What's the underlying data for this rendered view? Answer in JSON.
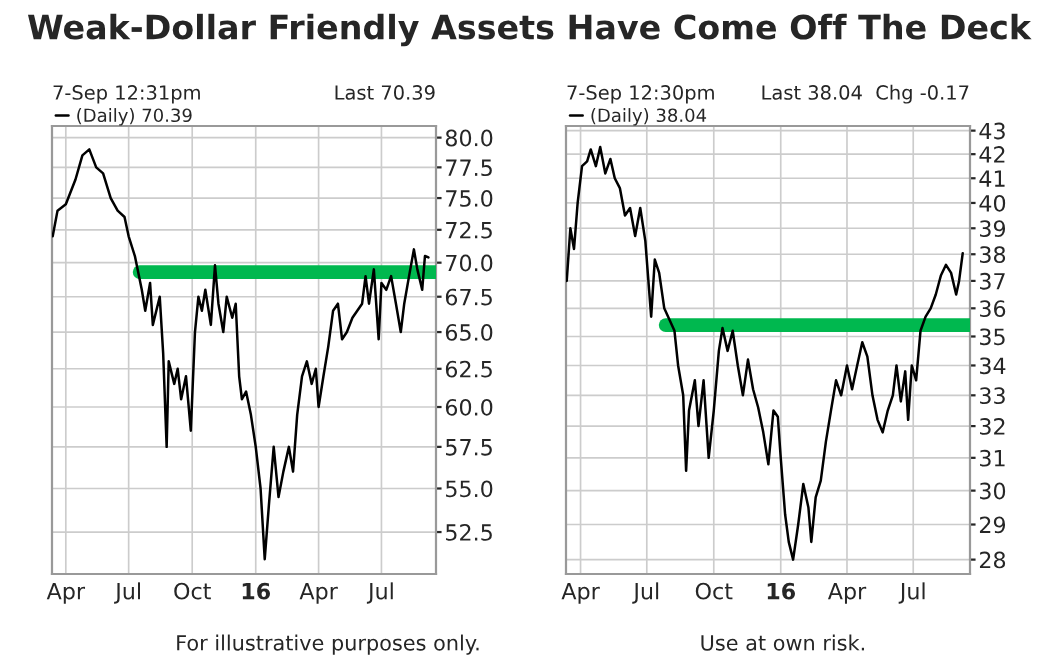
{
  "chart_data": [
    {
      "type": "line",
      "title": "Weak-Dollar Friendly Assets Have Come Off The Deck",
      "subtitle": "7-Sep 12:31pm",
      "annotations": [
        "Last 70.39",
        "For illustrative purposes only."
      ],
      "log": "y",
      "grid": true,
      "legend": "top left",
      "xlim": [
        "2015-03-12",
        "2016-09-18"
      ],
      "xticks": [
        {
          "value": "2015-04-01",
          "label": "Apr"
        },
        {
          "value": "2015-07-01",
          "label": "Jul"
        },
        {
          "value": "2015-10-01",
          "label": "Oct"
        },
        {
          "value": "2016-01-01",
          "label": "16"
        },
        {
          "value": "2016-04-01",
          "label": "Apr"
        },
        {
          "value": "2016-07-01",
          "label": "Jul"
        }
      ],
      "ylim": [
        50.2,
        81
      ],
      "yticks": [
        {
          "value": 52.5,
          "label": "52.5"
        },
        {
          "value": 55,
          "label": "55.0"
        },
        {
          "value": 57.5,
          "label": "57.5"
        },
        {
          "value": 60,
          "label": "60.0"
        },
        {
          "value": 62.5,
          "label": "62.5"
        },
        {
          "value": 65,
          "label": "65.0"
        },
        {
          "value": 67.5,
          "label": "67.5"
        },
        {
          "value": 70,
          "label": "70.0"
        },
        {
          "value": 72.5,
          "label": "72.5"
        },
        {
          "value": 75,
          "label": "75.0"
        },
        {
          "value": 77.5,
          "label": "77.5"
        },
        {
          "value": 80,
          "label": "80.0"
        }
      ],
      "series": [
        {
          "name": "(Daily) 70.39",
          "color": "#000000",
          "x": [
            "2015-03-13",
            "2015-03-20",
            "2015-04-01",
            "2015-04-15",
            "2015-04-25",
            "2015-05-05",
            "2015-05-15",
            "2015-05-25",
            "2015-06-05",
            "2015-06-15",
            "2015-06-25",
            "2015-07-01",
            "2015-07-10",
            "2015-07-20",
            "2015-07-25",
            "2015-08-01",
            "2015-08-05",
            "2015-08-15",
            "2015-08-20",
            "2015-08-25",
            "2015-08-28",
            "2015-09-05",
            "2015-09-10",
            "2015-09-15",
            "2015-09-22",
            "2015-09-29",
            "2015-10-05",
            "2015-10-10",
            "2015-10-15",
            "2015-10-20",
            "2015-10-28",
            "2015-11-03",
            "2015-11-08",
            "2015-11-15",
            "2015-11-20",
            "2015-11-28",
            "2015-12-03",
            "2015-12-08",
            "2015-12-12",
            "2015-12-18",
            "2015-12-25",
            "2016-01-01",
            "2016-01-08",
            "2016-01-14",
            "2016-01-20",
            "2016-01-27",
            "2016-02-03",
            "2016-02-10",
            "2016-02-18",
            "2016-02-24",
            "2016-03-01",
            "2016-03-08",
            "2016-03-15",
            "2016-03-22",
            "2016-03-28",
            "2016-04-01",
            "2016-04-08",
            "2016-04-15",
            "2016-04-22",
            "2016-04-29",
            "2016-05-05",
            "2016-05-12",
            "2016-05-20",
            "2016-05-27",
            "2016-06-03",
            "2016-06-08",
            "2016-06-13",
            "2016-06-20",
            "2016-06-27",
            "2016-07-01",
            "2016-07-08",
            "2016-07-15",
            "2016-07-22",
            "2016-07-29",
            "2016-08-03",
            "2016-08-10",
            "2016-08-17",
            "2016-08-22",
            "2016-08-29",
            "2016-09-02",
            "2016-09-07"
          ],
          "values": [
            72.0,
            74,
            74.5,
            76.5,
            78.5,
            79,
            77.5,
            77,
            75,
            74,
            73.5,
            72,
            70.5,
            68,
            66.5,
            68.5,
            65.5,
            67.5,
            63.5,
            57.5,
            63,
            61.5,
            62.5,
            60.5,
            62,
            58.5,
            65,
            67.5,
            66.5,
            68,
            65.5,
            69.8,
            67,
            65,
            67.5,
            66,
            67,
            62,
            60.5,
            61,
            59.5,
            57.5,
            55,
            51.0,
            54,
            57.5,
            54.5,
            56,
            57.5,
            56,
            59.5,
            62,
            63,
            61.5,
            62.5,
            60,
            62,
            64,
            66.5,
            67,
            64.5,
            65,
            66,
            66.5,
            67,
            69,
            67,
            69.5,
            64.5,
            68.5,
            68,
            69,
            67,
            65,
            67,
            69,
            71,
            69.5,
            68,
            70.5,
            70.39
          ]
        },
        {
          "color": "#00b84f",
          "x": [
            "2015-07-17",
            "2016-09-18"
          ],
          "values": [
            69.3,
            69.3
          ]
        }
      ]
    },
    {
      "type": "line",
      "subtitle": "7-Sep 12:30pm",
      "annotations": [
        "Last 38.04  Chg -0.17",
        "Use at own risk."
      ],
      "log": "y",
      "grid": true,
      "legend": "top left",
      "xlim": [
        "2015-03-12",
        "2016-09-17"
      ],
      "xticks": [
        {
          "value": "2015-04-01",
          "label": "Apr"
        },
        {
          "value": "2015-07-01",
          "label": "Jul"
        },
        {
          "value": "2015-10-01",
          "label": "Oct"
        },
        {
          "value": "2016-01-01",
          "label": "16"
        },
        {
          "value": "2016-04-01",
          "label": "Apr"
        },
        {
          "value": "2016-07-01",
          "label": "Jul"
        }
      ],
      "ylim": [
        27.6,
        43.2
      ],
      "yticks": [
        28,
        29,
        30,
        31,
        32,
        33,
        34,
        35,
        36,
        37,
        38,
        39,
        40,
        41,
        42,
        43
      ],
      "series": [
        {
          "name": "(Daily) 38.04",
          "color": "#000000",
          "x": [
            "2015-03-13",
            "2015-03-18",
            "2015-03-23",
            "2015-03-28",
            "2015-04-03",
            "2015-04-10",
            "2015-04-15",
            "2015-04-22",
            "2015-04-28",
            "2015-05-05",
            "2015-05-12",
            "2015-05-18",
            "2015-05-25",
            "2015-06-01",
            "2015-06-08",
            "2015-06-15",
            "2015-06-22",
            "2015-06-29",
            "2015-07-07",
            "2015-07-12",
            "2015-07-18",
            "2015-07-25",
            "2015-08-01",
            "2015-08-08",
            "2015-08-13",
            "2015-08-20",
            "2015-08-24",
            "2015-08-28",
            "2015-09-05",
            "2015-09-10",
            "2015-09-17",
            "2015-09-24",
            "2015-10-01",
            "2015-10-08",
            "2015-10-13",
            "2015-10-20",
            "2015-10-27",
            "2015-11-03",
            "2015-11-10",
            "2015-11-17",
            "2015-11-24",
            "2015-12-01",
            "2015-12-08",
            "2015-12-15",
            "2015-12-22",
            "2015-12-28",
            "2016-01-01",
            "2016-01-07",
            "2016-01-12",
            "2016-01-18",
            "2016-01-25",
            "2016-02-01",
            "2016-02-08",
            "2016-02-12",
            "2016-02-18",
            "2016-02-25",
            "2016-03-03",
            "2016-03-10",
            "2016-03-17",
            "2016-03-24",
            "2016-04-01",
            "2016-04-08",
            "2016-04-15",
            "2016-04-22",
            "2016-04-29",
            "2016-05-06",
            "2016-05-13",
            "2016-05-20",
            "2016-05-27",
            "2016-06-03",
            "2016-06-08",
            "2016-06-14",
            "2016-06-20",
            "2016-06-24",
            "2016-06-29",
            "2016-07-05",
            "2016-07-11",
            "2016-07-18",
            "2016-07-25",
            "2016-08-01",
            "2016-08-08",
            "2016-08-15",
            "2016-08-22",
            "2016-08-29",
            "2016-09-02",
            "2016-09-07"
          ],
          "values": [
            37.0,
            39,
            38.2,
            40,
            41.5,
            41.7,
            42.2,
            41.5,
            42.3,
            41.2,
            41.8,
            41.0,
            40.6,
            39.5,
            39.8,
            38.7,
            39.8,
            38.5,
            35.7,
            37.8,
            37.3,
            36.0,
            35.6,
            35.2,
            34.0,
            33.0,
            30.6,
            32.5,
            33.5,
            32.0,
            33.5,
            31.0,
            32.5,
            34.5,
            35.3,
            34.5,
            35.2,
            34.0,
            33.0,
            34.2,
            33.2,
            32.6,
            31.8,
            30.8,
            32.5,
            32.3,
            31.0,
            29.3,
            28.5,
            28.0,
            29.0,
            30.2,
            29.5,
            28.5,
            29.8,
            30.3,
            31.5,
            32.5,
            33.5,
            33.0,
            34.0,
            33.2,
            34.0,
            34.8,
            34.3,
            33.0,
            32.2,
            31.8,
            32.5,
            33.0,
            34.0,
            32.8,
            33.8,
            32.2,
            34.0,
            33.5,
            35.2,
            35.7,
            36.0,
            36.5,
            37.2,
            37.6,
            37.3,
            36.5,
            37.0,
            38.04
          ]
        },
        {
          "color": "#00b84f",
          "x": [
            "2015-07-27",
            "2016-09-17"
          ],
          "values": [
            35.4,
            35.4
          ]
        }
      ]
    }
  ]
}
